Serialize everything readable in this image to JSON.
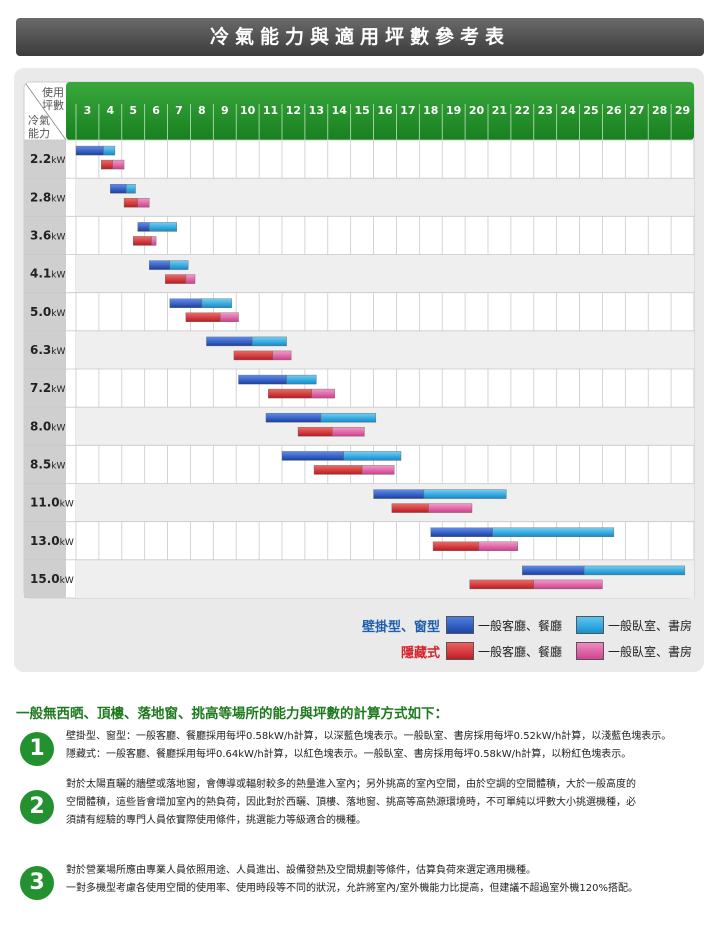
{
  "title": "冷氣能力與適用坪數參考表",
  "corner": {
    "top": [
      "使用",
      "坪數"
    ],
    "bottom": [
      "冷氣",
      "能力"
    ]
  },
  "chart_data": {
    "type": "bar",
    "title": "冷氣能力與適用坪數參考表",
    "x_ticks": [
      "3",
      "4",
      "5",
      "6",
      "7",
      "8",
      "9",
      "10",
      "11",
      "12",
      "13",
      "14",
      "15",
      "16",
      "17",
      "18",
      "19",
      "20",
      "21",
      "22",
      "23",
      "24",
      "25",
      "26",
      "27",
      "28",
      "29"
    ],
    "xlim": [
      3,
      29
    ],
    "categories": [
      "2.2",
      "2.8",
      "3.6",
      "4.1",
      "5.0",
      "6.3",
      "7.2",
      "8.0",
      "8.5",
      "11.0",
      "13.0",
      "15.0"
    ],
    "unit": "kW",
    "series": [
      {
        "name": "壁掛型、窗型 一般客廳、餐廳",
        "ranges": [
          [
            3,
            4.2
          ],
          [
            4.5,
            5.2
          ],
          [
            5.7,
            6.2
          ],
          [
            6.2,
            7.1
          ],
          [
            7.1,
            8.5
          ],
          [
            8.7,
            10.7
          ],
          [
            10.1,
            12.2
          ],
          [
            11.3,
            13.7
          ],
          [
            12,
            14.7
          ],
          [
            16,
            18.2
          ],
          [
            18.5,
            21.2
          ],
          [
            22.5,
            25.2
          ]
        ]
      },
      {
        "name": "壁掛型、窗型 一般臥室、書房",
        "ranges": [
          [
            4.2,
            4.7
          ],
          [
            5.2,
            5.6
          ],
          [
            6.2,
            7.4
          ],
          [
            7.1,
            7.9
          ],
          [
            8.5,
            9.8
          ],
          [
            10.7,
            12.2
          ],
          [
            12.2,
            13.5
          ],
          [
            13.7,
            16.1
          ],
          [
            14.7,
            17.2
          ],
          [
            18.2,
            21.8
          ],
          [
            21.2,
            26.5
          ],
          [
            25.2,
            30.5
          ]
        ]
      },
      {
        "name": "隱藏式 一般客廳、餐廳",
        "ranges": [
          [
            4.1,
            4.6
          ],
          [
            5.1,
            5.7
          ],
          [
            5.5,
            6.3
          ],
          [
            6.9,
            7.8
          ],
          [
            7.8,
            9.3
          ],
          [
            9.9,
            11.6
          ],
          [
            11.4,
            13.3
          ],
          [
            12.7,
            14.2
          ],
          [
            13.4,
            15.5
          ],
          [
            16.8,
            18.4
          ],
          [
            18.6,
            20.6
          ],
          [
            20.2,
            23
          ]
        ]
      },
      {
        "name": "隱藏式 一般臥室、書房",
        "ranges": [
          [
            4.6,
            5.1
          ],
          [
            5.7,
            6.2
          ],
          [
            6.3,
            6.5
          ],
          [
            7.8,
            8.2
          ],
          [
            9.3,
            10.1
          ],
          [
            11.6,
            12.4
          ],
          [
            13.3,
            14.3
          ],
          [
            14.2,
            15.6
          ],
          [
            15.5,
            16.9
          ],
          [
            18.4,
            20.3
          ],
          [
            20.6,
            22.3
          ],
          [
            23,
            26
          ]
        ]
      }
    ],
    "legend": "bottom-right",
    "grid": true,
    "colors": {
      "wall_living": "#2b5bd1",
      "wall_bedroom": "#1ea3e0",
      "hidden_living": "#d9262c",
      "hidden_bedroom": "#e0559a",
      "header_green": "#1f8f2a"
    }
  },
  "legend": {
    "row1_type": "壁掛型、窗型",
    "row2_type": "隱藏式",
    "living": "一般客廳、餐廳",
    "bedroom": "一般臥室、書房"
  },
  "notes": {
    "heading": "一般無西晒、頂樓、落地窗、挑高等場所的能力與坪數的計算方式如下：",
    "items": [
      {
        "number": "1",
        "lines": [
          "壁掛型、窗型：一般客廳、餐廳採用每坪0.58kW/h計算，以深藍色塊表示。一般臥室、書房採用每坪0.52kW/h計算，以淺藍色塊表示。",
          "隱藏式：一般客廳、餐廳採用每坪0.64kW/h計算，以紅色塊表示。一般臥室、書房採用每坪0.58kW/h計算，以粉紅色塊表示。"
        ]
      },
      {
        "number": "2",
        "lines": [
          "對於太陽直曬的牆壁或落地窗，會傳導或輻射較多的熱量進入室內；另外挑高的室內空間，由於空調的空間體積，大於一般高度的",
          "空間體積，這些皆會增加室內的熱負荷，因此對於西曬、頂樓、落地窗、挑高等高熱源環境時，不可單純以坪數大小挑選機種，必",
          "須請有經驗的專門人員依實際使用條件，挑選能力等級適合的機種。"
        ]
      },
      {
        "number": "3",
        "lines": [
          "對於營業場所應由專業人員依照用途、人員進出、設備發熱及空間規劃等條件，估算負荷來選定適用機種。",
          "一對多機型考慮各使用空間的使用率、使用時段等不同的狀況，允許將室內/室外機能力比提高，但建議不超過室外機120%搭配。"
        ]
      }
    ]
  }
}
